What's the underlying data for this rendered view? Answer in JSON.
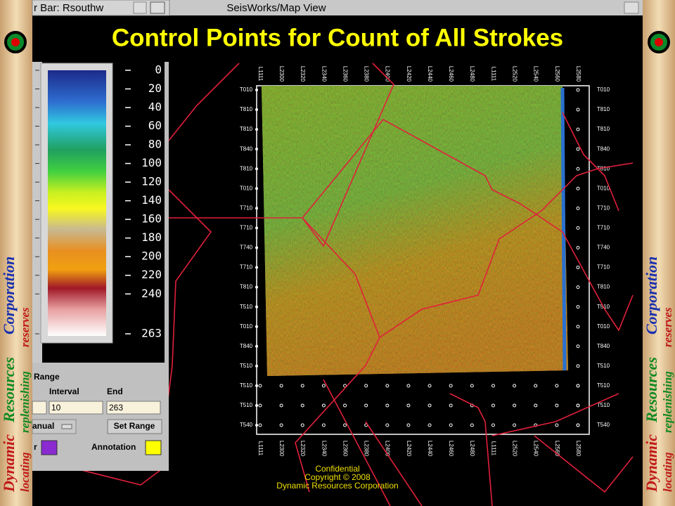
{
  "window": {
    "left_title": "r Bar: Rsouthw",
    "title": "SeisWorks/Map View"
  },
  "slide_title": "Control Points for Count of All Strokes",
  "banner": {
    "words": [
      "Dynamic",
      "Resources",
      "Corporation"
    ],
    "tagline": [
      "locating",
      "replenishing",
      "reserves"
    ]
  },
  "colorbar": {
    "ticks": [
      0,
      20,
      40,
      60,
      80,
      100,
      120,
      140,
      160,
      180,
      200,
      220,
      240,
      263
    ]
  },
  "panel": {
    "section": "Range",
    "interval_label": "Interval",
    "end_label": "End",
    "interval_value": "10",
    "end_value": "263",
    "mode": "anual",
    "button": "Set Range",
    "color_label": "r",
    "annotation_label": "Annotation"
  },
  "map": {
    "column_labels": [
      "L1111",
      "L2300",
      "L2320",
      "L2340",
      "L2360",
      "L2380",
      "L2400",
      "L2420",
      "L2440",
      "L2460",
      "L2480",
      "L1111",
      "L2520",
      "L2540",
      "L2560",
      "L2580"
    ],
    "row_labels": [
      "T010",
      "T810",
      "T810",
      "T840",
      "T810",
      "T010",
      "T710",
      "T710",
      "T740",
      "T710",
      "T810",
      "T510",
      "T010",
      "T840",
      "T510",
      "T510",
      "T510",
      "T540"
    ]
  },
  "footer": [
    "Confidential",
    "Copyright © 2008",
    "Dynamic Resources Corporation"
  ]
}
